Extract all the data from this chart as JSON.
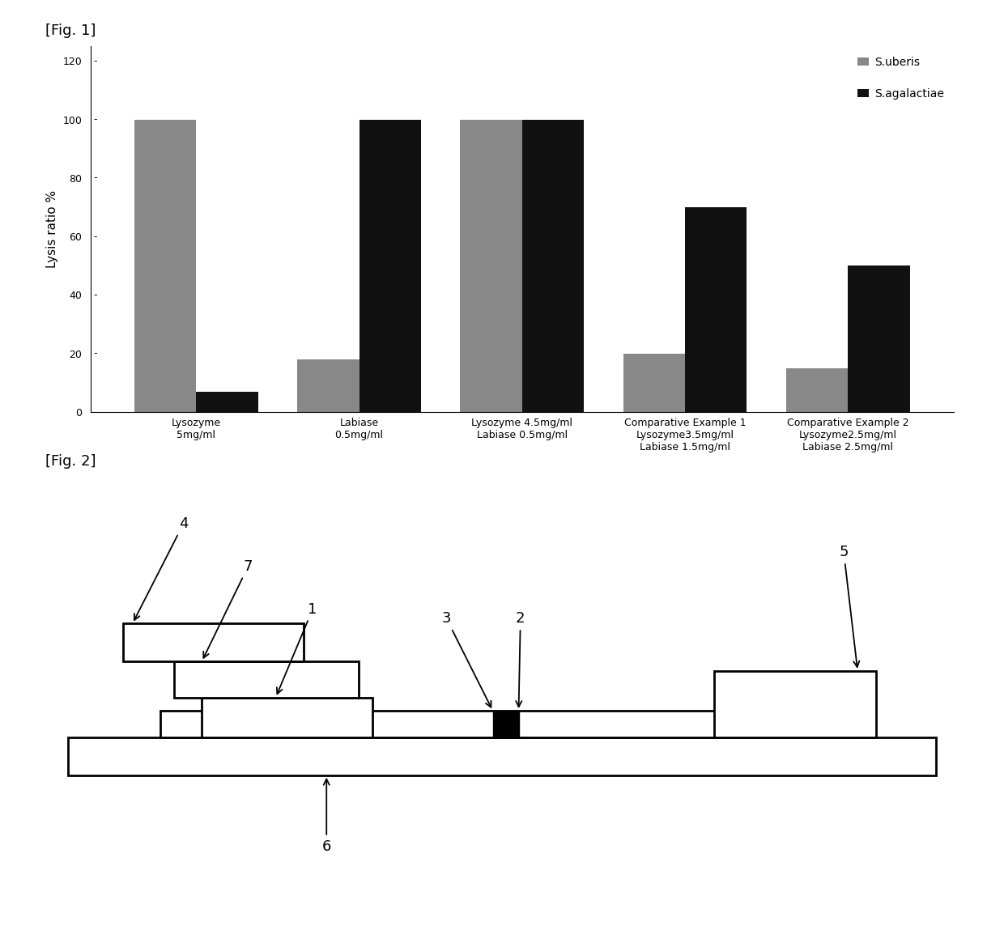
{
  "fig1_title": "[Fig. 1]",
  "fig2_title": "[Fig. 2]",
  "ylabel": "Lysis ratio %",
  "ylim": [
    0,
    125
  ],
  "yticks": [
    0,
    20,
    40,
    60,
    80,
    100,
    120
  ],
  "ytick_labels": [
    "0",
    "20",
    "40",
    "60",
    "80",
    "100",
    "120"
  ],
  "categories": [
    "Lysozyme\n5mg/ml",
    "Labiase\n0.5mg/ml",
    "Lysozyme 4.5mg/ml\nLabiase 0.5mg/ml",
    "Comparative Example 1\nLysozyme3.5mg/ml\nLabiase 1.5mg/ml",
    "Comparative Example 2\nLysozyme2.5mg/ml\nLabiase 2.5mg/ml"
  ],
  "s_uberis": [
    100,
    18,
    100,
    20,
    15
  ],
  "s_agalactiae": [
    7,
    100,
    100,
    70,
    50
  ],
  "color_uberis": "#888888",
  "color_agalactiae": "#111111",
  "legend_uberis": "S.uberis",
  "legend_agalactiae": "S.agalactiae",
  "bar_width": 0.38,
  "background_color": "#ffffff",
  "font_size_tick": 9,
  "font_size_legend": 10,
  "font_size_ylabel": 11,
  "font_size_figlabel": 13
}
